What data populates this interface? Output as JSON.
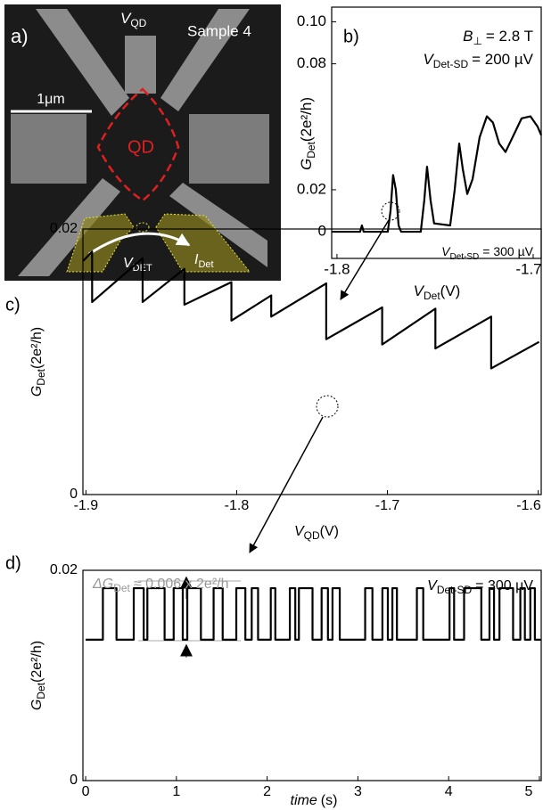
{
  "image": {
    "panel_label": "a)",
    "gate_label": {
      "symbol": "V",
      "subscript": "QD"
    },
    "sample": "Sample 4",
    "scale_bar": "1μm",
    "dot_label": "QD",
    "detector_voltage": {
      "symbol": "V",
      "subscript": "DET"
    },
    "detector_current": {
      "symbol": "I",
      "subscript": "Det"
    }
  },
  "chart_data": [
    {
      "type": "line",
      "panel_label": "b)",
      "color": "#000000",
      "x_label": {
        "symbol": "V",
        "subscript": "Det",
        "unit": "(V)"
      },
      "y_label": {
        "symbol": "G",
        "subscript": "Det",
        "unit": "(2e²/h)"
      },
      "annotations": [
        {
          "symbol": "B",
          "subscript": "⊥",
          "unit": "= 2.8 T"
        },
        {
          "symbol": "V",
          "subscript": "Det-SD",
          "unit": "= 200 µV"
        }
      ],
      "xlim": [
        -1.8027,
        -1.6959
      ],
      "xticks": [
        -1.8,
        -1.7
      ],
      "ylim": [
        -0.0127,
        0.107
      ],
      "yticks": [
        0,
        0.02,
        0.08,
        {
          "value": 0.1,
          "label": "0.10"
        }
      ],
      "x": [
        -1.8027,
        -1.79,
        -1.7882,
        -1.7873,
        -1.7864,
        -1.7741,
        -1.7727,
        -1.7714,
        -1.77,
        -1.7686,
        -1.7673,
        -1.7573,
        -1.7555,
        -1.7541,
        -1.7523,
        -1.7505,
        -1.7423,
        -1.74,
        -1.7377,
        -1.7359,
        -1.7336,
        -1.7309,
        -1.7273,
        -1.7236,
        -1.7205,
        -1.7173,
        -1.7141,
        -1.7105,
        -1.7059,
        -1.7014,
        -1.6977,
        -1.6959
      ],
      "values": [
        0,
        0,
        0,
        0.003,
        0,
        0,
        0.01,
        0.027,
        0.02,
        0.003,
        0,
        0,
        0.015,
        0.031,
        0.015,
        0.004,
        0.003,
        0.02,
        0.042,
        0.03,
        0.018,
        0.025,
        0.045,
        0.055,
        0.052,
        0.042,
        0.038,
        0.045,
        0.054,
        0.055,
        0.05,
        0.046
      ]
    },
    {
      "type": "line",
      "panel_label": "c)",
      "color": "#000000",
      "x_label": {
        "symbol": "V",
        "subscript": "QD",
        "unit": "(V)"
      },
      "y_label": {
        "symbol": "G",
        "subscript": "Det",
        "unit": "(2e²/h)"
      },
      "annotations": [
        {
          "symbol": "V",
          "subscript": "Det-SD",
          "unit": "= 300 µV"
        }
      ],
      "xlim": [
        -1.902,
        -1.598
      ],
      "xticks": [
        -1.9,
        -1.8,
        -1.7,
        -1.6
      ],
      "ylim": [
        0,
        0.02
      ],
      "yticks": [
        0,
        0.02
      ],
      "x": [
        -1.9018,
        -1.8959,
        -1.8959,
        -1.8624,
        -1.8624,
        -1.8347,
        -1.8347,
        -1.8035,
        -1.8035,
        -1.7771,
        -1.7771,
        -1.7406,
        -1.7406,
        -1.7035,
        -1.7035,
        -1.6682,
        -1.6682,
        -1.6312,
        -1.6312,
        -1.5994
      ],
      "values": [
        0.0176,
        0.0183,
        0.0145,
        0.0178,
        0.0145,
        0.017,
        0.0143,
        0.016,
        0.0131,
        0.015,
        0.0134,
        0.0159,
        0.0117,
        0.0141,
        0.0113,
        0.014,
        0.011,
        0.0134,
        0.0095,
        0.0115
      ]
    },
    {
      "type": "line",
      "panel_label": "d)",
      "color": "#000000",
      "x_label": {
        "symbol": "time",
        "unit": "(s)"
      },
      "y_label": {
        "symbol": "G",
        "subscript": "Det",
        "unit": "(2e²/h)"
      },
      "annotations": [
        {
          "symbol": "V",
          "subscript": "Det-SD",
          "unit": "= 300 µV"
        },
        {
          "symbol": "ΔG",
          "subscript": "Det",
          "unit": "≈ 0.006 x 2e²/h"
        }
      ],
      "xlim": [
        -0.03,
        5.02
      ],
      "xticks": [
        0,
        1,
        2,
        3,
        4,
        5
      ],
      "ylim": [
        0,
        0.02
      ],
      "yticks": [
        0,
        0.02
      ],
      "x": [
        0,
        0.19,
        0.19,
        0.34,
        0.34,
        0.53,
        0.53,
        0.64,
        0.64,
        0.68,
        0.68,
        0.87,
        0.87,
        0.97,
        0.97,
        1.07,
        1.07,
        1.12,
        1.12,
        1.27,
        1.27,
        1.41,
        1.41,
        1.51,
        1.51,
        1.66,
        1.66,
        1.76,
        1.76,
        1.83,
        1.83,
        1.9,
        1.9,
        2.04,
        2.04,
        2.09,
        2.09,
        2.25,
        2.25,
        2.31,
        2.31,
        2.35,
        2.35,
        2.5,
        2.5,
        2.6,
        2.6,
        2.67,
        2.67,
        2.72,
        2.72,
        2.8,
        2.8,
        3.08,
        3.08,
        3.16,
        3.16,
        3.27,
        3.27,
        3.33,
        3.33,
        3.38,
        3.38,
        3.43,
        3.43,
        3.65,
        3.65,
        3.72,
        3.72,
        4.01,
        4.01,
        4.06,
        4.06,
        4.17,
        4.17,
        4.36,
        4.36,
        4.45,
        4.45,
        4.5,
        4.5,
        4.56,
        4.56,
        4.71,
        4.71,
        4.79,
        4.79,
        4.84,
        4.84,
        4.9,
        4.9,
        4.95,
        4.95,
        5.02
      ],
      "values": [
        0.0134,
        0.0134,
        0.0183,
        0.0183,
        0.0134,
        0.0134,
        0.0183,
        0.0183,
        0.0134,
        0.0134,
        0.0183,
        0.0183,
        0.0134,
        0.0134,
        0.0183,
        0.0183,
        0.0134,
        0.0134,
        0.0183,
        0.0183,
        0.0134,
        0.0134,
        0.0183,
        0.0183,
        0.0134,
        0.0134,
        0.0183,
        0.0183,
        0.0134,
        0.0134,
        0.0183,
        0.0183,
        0.0134,
        0.0134,
        0.0183,
        0.0183,
        0.0134,
        0.0134,
        0.0183,
        0.0183,
        0.0134,
        0.0134,
        0.0183,
        0.0183,
        0.0134,
        0.0134,
        0.0183,
        0.0183,
        0.0134,
        0.0134,
        0.0183,
        0.0183,
        0.0134,
        0.0134,
        0.0183,
        0.0183,
        0.0134,
        0.0134,
        0.0183,
        0.0183,
        0.0134,
        0.0134,
        0.0183,
        0.0183,
        0.0134,
        0.0134,
        0.0183,
        0.0183,
        0.0134,
        0.0134,
        0.0183,
        0.0183,
        0.0134,
        0.0134,
        0.0183,
        0.0183,
        0.0134,
        0.0134,
        0.0183,
        0.0183,
        0.0134,
        0.0134,
        0.0183,
        0.0183,
        0.0134,
        0.0134,
        0.0183,
        0.0183,
        0.0134,
        0.0134,
        0.0183,
        0.0183,
        0.0134,
        0.0134
      ]
    }
  ]
}
